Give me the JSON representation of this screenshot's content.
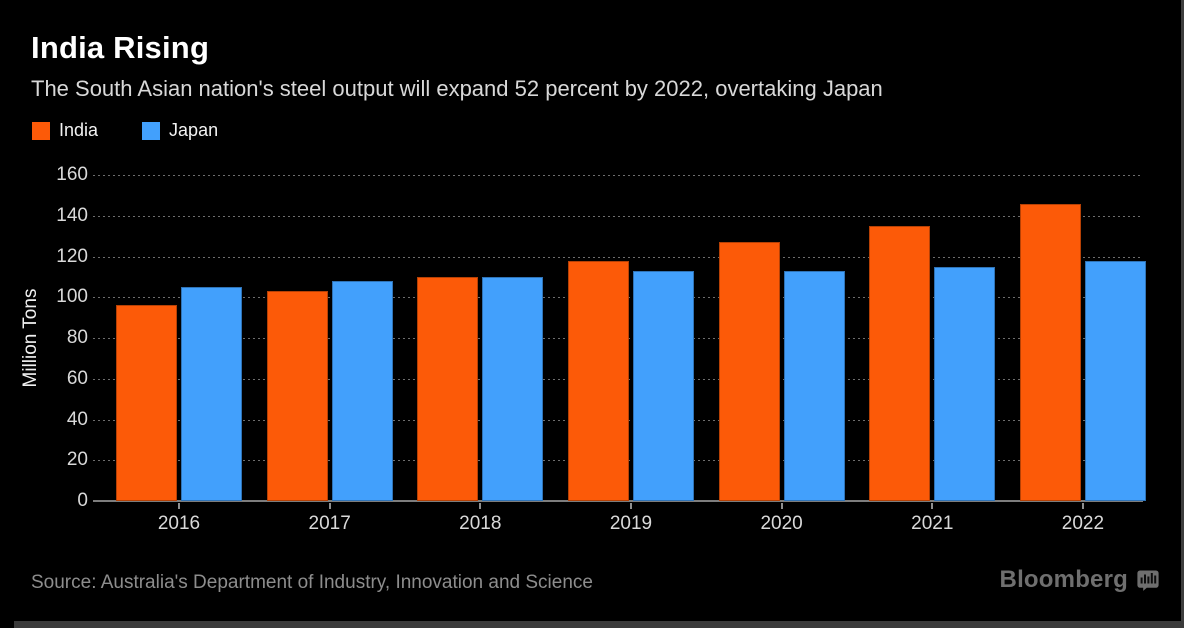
{
  "header": {
    "title": "India Rising",
    "subtitle": "The South Asian nation's steel output will expand 52 percent by 2022, overtaking Japan"
  },
  "legend": {
    "items": [
      {
        "label": "India",
        "color": "#fc5a08"
      },
      {
        "label": "Japan",
        "color": "#42a0fc"
      }
    ]
  },
  "chart_data": {
    "type": "bar",
    "title": "India Rising",
    "subtitle": "The South Asian nation's steel output will expand 52 percent by 2022, overtaking Japan",
    "categories": [
      "2016",
      "2017",
      "2018",
      "2019",
      "2020",
      "2021",
      "2022"
    ],
    "series": [
      {
        "name": "India",
        "color": "#fc5a08",
        "values": [
          96,
          103,
          110,
          118,
          127,
          135,
          146
        ]
      },
      {
        "name": "Japan",
        "color": "#42a0fc",
        "values": [
          105,
          108,
          110,
          113,
          113,
          115,
          118
        ]
      }
    ],
    "xlabel": "",
    "ylabel": "Million Tons",
    "ylim": [
      0,
      160
    ],
    "ytick_interval": 20,
    "yticks": [
      0,
      20,
      40,
      60,
      80,
      100,
      120,
      140,
      160
    ],
    "grid": "horizontal-dotted",
    "legend_position": "top-left",
    "background": "#000000",
    "text_color": "#d9d9d9"
  },
  "footer": {
    "source": "Source: Australia's Department of Industry, Innovation and Science",
    "brand": "Bloomberg",
    "brand_icon": "bloomberg-terminal-icon"
  }
}
